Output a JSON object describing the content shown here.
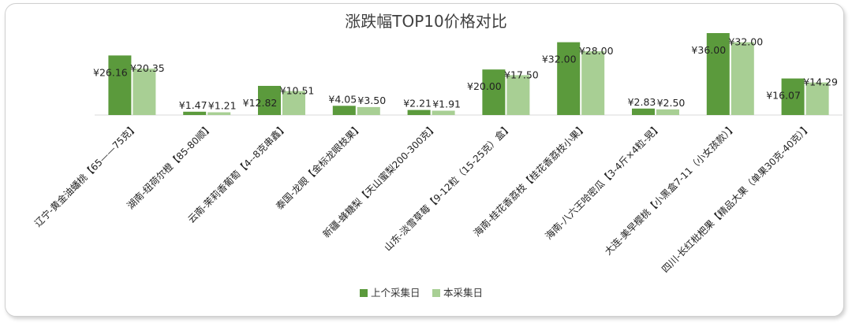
{
  "chart_data": {
    "type": "bar",
    "title": "涨跌幅TOP10价格对比",
    "value_prefix": "¥",
    "categories": [
      "辽宁-黄金油蟠桃【65——75克】",
      "湖南-纽荷尔橙【85-80顺】",
      "云南-茉莉香葡萄【4--8克串鑫】",
      "泰国-龙眼【金标龙眼枝果】",
      "新疆-蜂糖梨【天山蜜梨200-300克】",
      "山东-淡雪草莓【9-12粒（15-25克）盒】",
      "海南-桂花香荔枝【桂花香荔枝小果】",
      "海南-八六王哈密瓜【3-4斤×4粒-晃】",
      "大连-美早樱桃【小黑盒7-11（小女孩款）】",
      "四川-长红枇杷果【精品大果（单果30克-40克）】"
    ],
    "series": [
      {
        "name": "上个采集日",
        "color": "#5b9a3c",
        "values": [
          26.16,
          1.47,
          12.82,
          4.05,
          2.21,
          20.0,
          32.0,
          2.83,
          36.0,
          16.07
        ],
        "labels": [
          "¥26.16",
          "¥1.47",
          "¥12.82",
          "¥4.05",
          "¥2.21",
          "¥20.00",
          "¥32.00",
          "¥2.83",
          "¥36.00",
          "¥16.07"
        ]
      },
      {
        "name": "本采集日",
        "color": "#a8cf94",
        "values": [
          20.35,
          1.21,
          10.51,
          3.5,
          1.91,
          17.5,
          28.0,
          2.5,
          32.0,
          14.29
        ],
        "labels": [
          "¥20.35",
          "¥1.21",
          "¥10.51",
          "¥3.50",
          "¥1.91",
          "¥17.50",
          "¥28.00",
          "¥2.50",
          "¥32.00",
          "¥14.29"
        ]
      }
    ],
    "ylim": [
      0,
      36
    ],
    "grid": false,
    "legend_position": "bottom"
  }
}
